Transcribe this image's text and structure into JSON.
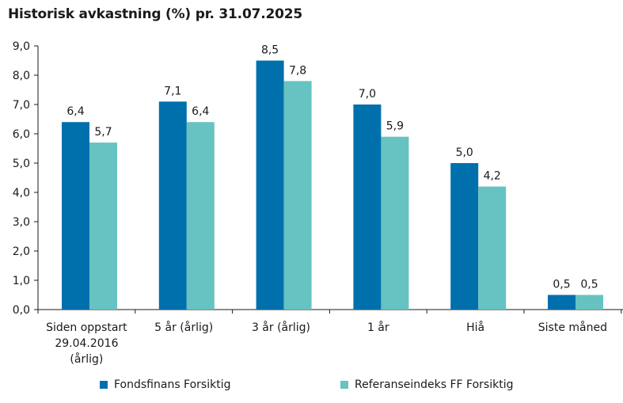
{
  "chart_data": {
    "type": "bar",
    "title": "Historisk avkastning (%) pr. 31.07.2025",
    "categories": [
      [
        "Siden oppstart",
        "29.04.2016",
        "(årlig)"
      ],
      [
        "5 år (årlig)"
      ],
      [
        "3 år (årlig)"
      ],
      [
        "1 år"
      ],
      [
        "Hiå"
      ],
      [
        "Siste måned"
      ]
    ],
    "series": [
      {
        "name": "Fondsfinans Forsiktig",
        "color": "#0070AD",
        "values": [
          6.4,
          7.1,
          8.5,
          7.0,
          5.0,
          0.5
        ]
      },
      {
        "name": "Referanseindeks FF Forsiktig",
        "color": "#66C3C1",
        "values": [
          5.7,
          6.4,
          7.8,
          5.9,
          4.2,
          0.5
        ]
      }
    ],
    "ylim": [
      0,
      9
    ],
    "yticks": [
      "0,0",
      "1,0",
      "2,0",
      "3,0",
      "4,0",
      "5,0",
      "6,0",
      "7,0",
      "8,0",
      "9,0"
    ],
    "ytick_values": [
      0,
      1,
      2,
      3,
      4,
      5,
      6,
      7,
      8,
      9
    ],
    "data_labels": [
      [
        "6,4",
        "7,1",
        "8,5",
        "7,0",
        "5,0",
        "0,5"
      ],
      [
        "5,7",
        "6,4",
        "7,8",
        "5,9",
        "4,2",
        "0,5"
      ]
    ],
    "grid": false,
    "legend_position": "bottom"
  }
}
